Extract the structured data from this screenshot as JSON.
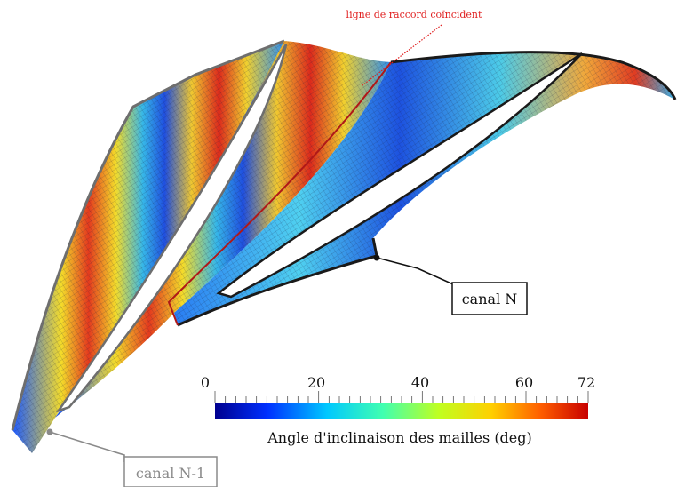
{
  "annotations": {
    "top_label": "ligne de raccord coïncident",
    "canal_n": "canal N",
    "canal_n1": "canal N-1"
  },
  "colorbar": {
    "title": "Angle d'inclinaison des mailles (deg)",
    "min": 0,
    "max": 72,
    "ticks": [
      "0",
      "20",
      "40",
      "60",
      "72"
    ]
  },
  "colors": {
    "annotation_red": "#e02020",
    "mesh_dark": "#222222",
    "canal_n1_gray": "#8a8a8a",
    "scale": [
      "#00008f",
      "#0030ff",
      "#00c8ff",
      "#40ffb0",
      "#c0ff20",
      "#ffd000",
      "#ff6000",
      "#c80000"
    ]
  }
}
